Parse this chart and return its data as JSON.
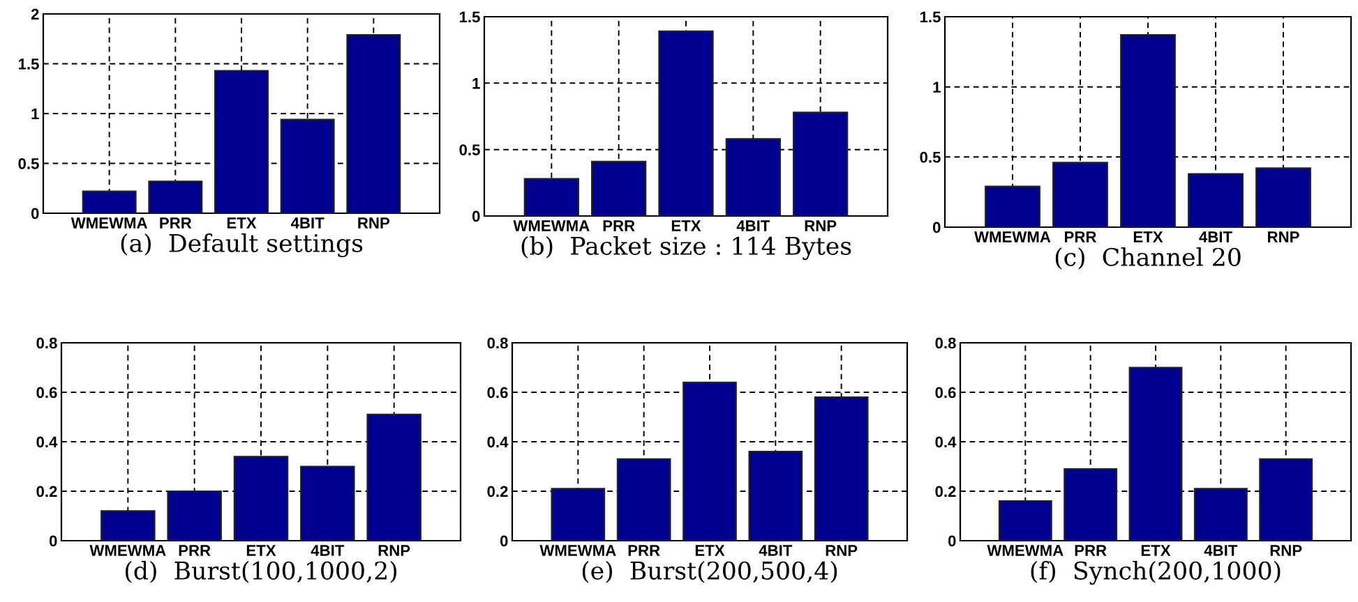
{
  "chart_data": [
    {
      "type": "bar",
      "xlabel": "(a)  Default settings",
      "categories": [
        "WMEWMA",
        "PRR",
        "ETX",
        "4BIT",
        "RNP"
      ],
      "values": [
        0.22,
        0.32,
        1.43,
        0.94,
        1.79
      ],
      "color": "#000090",
      "ylim": [
        0,
        2
      ],
      "yticks": [
        0,
        0.5,
        1,
        1.5,
        2
      ],
      "grid": true
    },
    {
      "type": "bar",
      "xlabel": "(b)  Packet size : 114 Bytes",
      "categories": [
        "WMEWMA",
        "PRR",
        "ETX",
        "4BIT",
        "RNP"
      ],
      "values": [
        0.28,
        0.41,
        1.39,
        0.58,
        0.78
      ],
      "color": "#000090",
      "ylim": [
        0,
        1.5
      ],
      "yticks": [
        0,
        0.5,
        1,
        1.5
      ],
      "grid": true
    },
    {
      "type": "bar",
      "xlabel": "(c)  Channel 20",
      "categories": [
        "WMEWMA",
        "PRR",
        "ETX",
        "4BIT",
        "RNP"
      ],
      "values": [
        0.29,
        0.46,
        1.37,
        0.38,
        0.42
      ],
      "color": "#000090",
      "ylim": [
        0,
        1.5
      ],
      "yticks": [
        0,
        0.5,
        1,
        1.5
      ],
      "grid": true
    },
    {
      "type": "bar",
      "xlabel": "(d)  Burst(100,1000,2)",
      "categories": [
        "WMEWMA",
        "PRR",
        "ETX",
        "4BIT",
        "RNP"
      ],
      "values": [
        0.12,
        0.2,
        0.34,
        0.3,
        0.51
      ],
      "color": "#000090",
      "ylim": [
        0,
        0.8
      ],
      "yticks": [
        0,
        0.2,
        0.4,
        0.6,
        0.8
      ],
      "grid": true
    },
    {
      "type": "bar",
      "xlabel": "(e)  Burst(200,500,4)",
      "categories": [
        "WMEWMA",
        "PRR",
        "ETX",
        "4BIT",
        "RNP"
      ],
      "values": [
        0.21,
        0.33,
        0.64,
        0.36,
        0.58
      ],
      "color": "#000090",
      "ylim": [
        0,
        0.8
      ],
      "yticks": [
        0,
        0.2,
        0.4,
        0.6,
        0.8
      ],
      "grid": true
    },
    {
      "type": "bar",
      "xlabel": "(f)  Synch(200,1000)",
      "categories": [
        "WMEWMA",
        "PRR",
        "ETX",
        "4BIT",
        "RNP"
      ],
      "values": [
        0.16,
        0.29,
        0.7,
        0.21,
        0.33
      ],
      "color": "#000090",
      "ylim": [
        0,
        0.8
      ],
      "yticks": [
        0,
        0.2,
        0.4,
        0.6,
        0.8
      ],
      "grid": true
    }
  ]
}
